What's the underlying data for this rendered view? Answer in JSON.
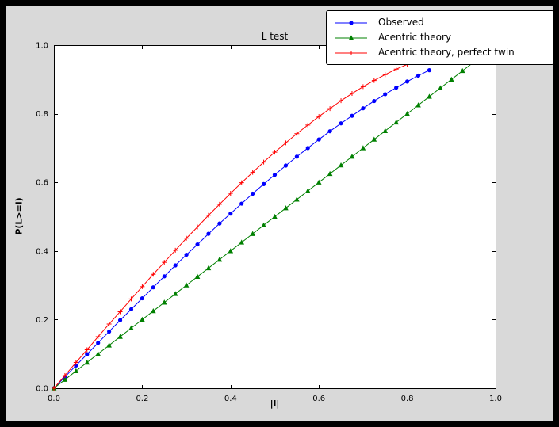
{
  "figure": {
    "window_background": "#000000",
    "facecolor": "#d9d9d9",
    "axes_facecolor": "#ffffff",
    "axes_edgecolor": "#000000"
  },
  "chart_data": {
    "type": "line",
    "title": "L test",
    "xlabel": "|l|",
    "ylabel": "P(L>=l)",
    "xlim": [
      0.0,
      1.0
    ],
    "ylim": [
      0.0,
      1.0
    ],
    "x_ticks": [
      0.0,
      0.2,
      0.4,
      0.6,
      0.8,
      1.0
    ],
    "x_tick_labels": [
      "0.0",
      "0.2",
      "0.4",
      "0.6",
      "0.8",
      "1.0"
    ],
    "y_ticks": [
      0.0,
      0.2,
      0.4,
      0.6,
      0.8,
      1.0
    ],
    "y_tick_labels": [
      "0.0",
      "0.2",
      "0.4",
      "0.6",
      "0.8",
      "1.0"
    ],
    "grid": false,
    "legend_position": "upper-right-outside",
    "series": [
      {
        "name": "Observed",
        "color": "#0000ff",
        "marker": "circle",
        "x": [
          0,
          0.025,
          0.05,
          0.075,
          0.1,
          0.125,
          0.15,
          0.175,
          0.2,
          0.225,
          0.25,
          0.275,
          0.3,
          0.325,
          0.35,
          0.375,
          0.4,
          0.425,
          0.45,
          0.475,
          0.5,
          0.525,
          0.55,
          0.575,
          0.6,
          0.625,
          0.65,
          0.675,
          0.7,
          0.725,
          0.75,
          0.775,
          0.8,
          0.825,
          0.85
        ],
        "y": [
          0,
          0.033,
          0.066,
          0.099,
          0.132,
          0.165,
          0.198,
          0.23,
          0.262,
          0.294,
          0.326,
          0.358,
          0.389,
          0.419,
          0.45,
          0.48,
          0.509,
          0.538,
          0.567,
          0.595,
          0.622,
          0.649,
          0.675,
          0.7,
          0.725,
          0.749,
          0.772,
          0.794,
          0.816,
          0.837,
          0.857,
          0.876,
          0.894,
          0.911,
          0.927
        ]
      },
      {
        "name": "Acentric theory",
        "color": "#008000",
        "marker": "triangle",
        "x": [
          0,
          0.025,
          0.05,
          0.075,
          0.1,
          0.125,
          0.15,
          0.175,
          0.2,
          0.225,
          0.25,
          0.275,
          0.3,
          0.325,
          0.35,
          0.375,
          0.4,
          0.425,
          0.45,
          0.475,
          0.5,
          0.525,
          0.55,
          0.575,
          0.6,
          0.625,
          0.65,
          0.675,
          0.7,
          0.725,
          0.75,
          0.775,
          0.8,
          0.825,
          0.85,
          0.875,
          0.9,
          0.925,
          0.95
        ],
        "y": [
          0,
          0.025,
          0.05,
          0.075,
          0.1,
          0.125,
          0.15,
          0.175,
          0.2,
          0.225,
          0.25,
          0.275,
          0.3,
          0.325,
          0.35,
          0.375,
          0.4,
          0.425,
          0.45,
          0.475,
          0.5,
          0.525,
          0.55,
          0.575,
          0.6,
          0.625,
          0.65,
          0.675,
          0.7,
          0.725,
          0.75,
          0.775,
          0.8,
          0.825,
          0.85,
          0.875,
          0.9,
          0.925,
          0.95
        ]
      },
      {
        "name": "Acentric theory, perfect twin",
        "color": "#ff0000",
        "marker": "plus",
        "x": [
          0,
          0.025,
          0.05,
          0.075,
          0.1,
          0.125,
          0.15,
          0.175,
          0.2,
          0.225,
          0.25,
          0.275,
          0.3,
          0.325,
          0.35,
          0.375,
          0.4,
          0.425,
          0.45,
          0.475,
          0.5,
          0.525,
          0.55,
          0.575,
          0.6,
          0.625,
          0.65,
          0.675,
          0.7,
          0.725,
          0.75,
          0.775,
          0.8,
          0.825,
          0.85
        ],
        "y": [
          0,
          0.037,
          0.075,
          0.112,
          0.15,
          0.187,
          0.223,
          0.26,
          0.296,
          0.332,
          0.367,
          0.402,
          0.437,
          0.47,
          0.504,
          0.536,
          0.568,
          0.599,
          0.629,
          0.659,
          0.688,
          0.715,
          0.742,
          0.767,
          0.792,
          0.815,
          0.838,
          0.859,
          0.879,
          0.897,
          0.914,
          0.93,
          0.944,
          0.957,
          0.968
        ]
      }
    ]
  }
}
